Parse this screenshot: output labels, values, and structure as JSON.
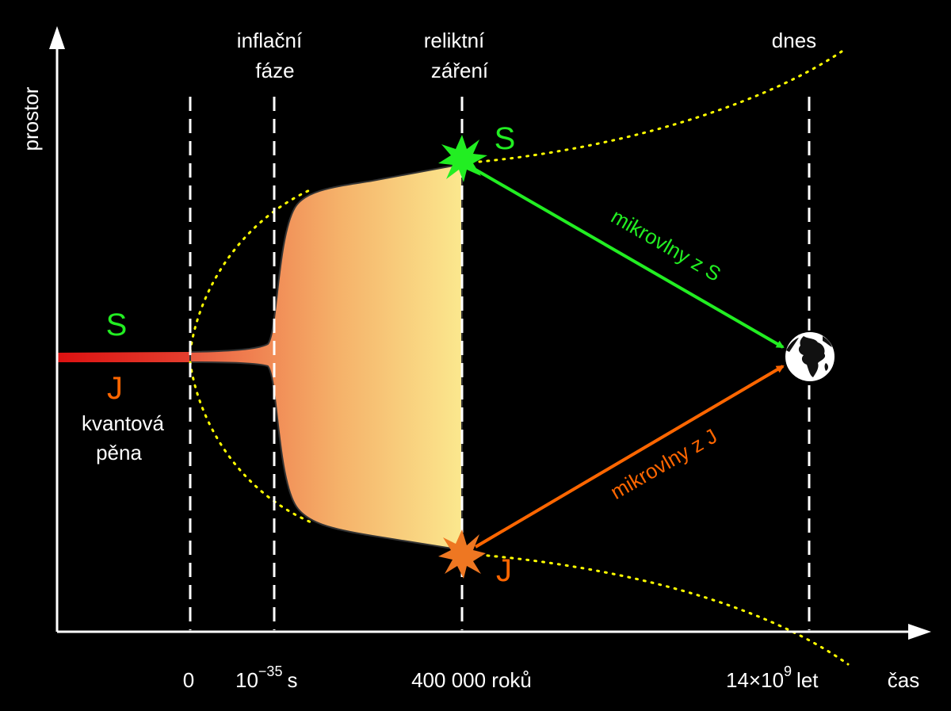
{
  "axes": {
    "y_label": "prostor",
    "x_label": "čas"
  },
  "phases": {
    "inflation": {
      "line1": "inflační",
      "line2": "fáze"
    },
    "cmb": {
      "line1": "reliktní",
      "line2": "záření"
    },
    "today": "dnes"
  },
  "ticks": {
    "zero": "0",
    "inflation_base": "10",
    "inflation_exp": "−35",
    "inflation_unit": "s",
    "cmb": "400 000 roků",
    "today_base": "14×10",
    "today_exp": "9",
    "today_unit": "let"
  },
  "regions": {
    "s_label": "S",
    "j_label": "J",
    "s_point": "S",
    "j_point": "J",
    "foam_line1": "kvantová",
    "foam_line2": "pěna"
  },
  "arrows": {
    "from_s": "mikrovlny z S",
    "from_j": "mikrovlny z J"
  },
  "colors": {
    "background": "#000000",
    "s_green": "#22ee22",
    "j_orange": "#ff6600",
    "dotted_yellow": "#ffff00",
    "foam_red": "#dd1111",
    "plasma_orange": "#ef8a56",
    "plasma_yellow": "#fbe68c"
  },
  "icons": {
    "earth": "earth-globe-icon",
    "s_burst": "star-burst-icon",
    "j_burst": "star-burst-icon"
  }
}
